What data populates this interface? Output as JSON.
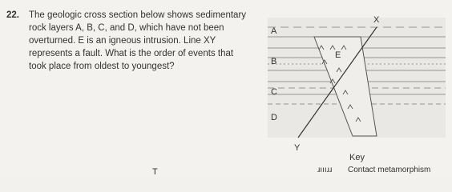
{
  "question": {
    "number": "22.",
    "lines": [
      "The geologic cross section below shows sedimentary",
      "rock layers A, B, C, and D, which have not been",
      "overturned. E is an igneous intrusion. Line XY",
      "represents a fault. What is the order of events that",
      "took place from oldest to youngest?"
    ]
  },
  "diagram": {
    "labels": {
      "x": "X",
      "y": "Y",
      "a": "A",
      "b": "B",
      "c": "C",
      "d": "D",
      "e": "E"
    }
  },
  "key": {
    "title": "Key",
    "symbol": "ɹıııɹɹ",
    "label": "Contact metamorphism"
  },
  "fragment": "T"
}
